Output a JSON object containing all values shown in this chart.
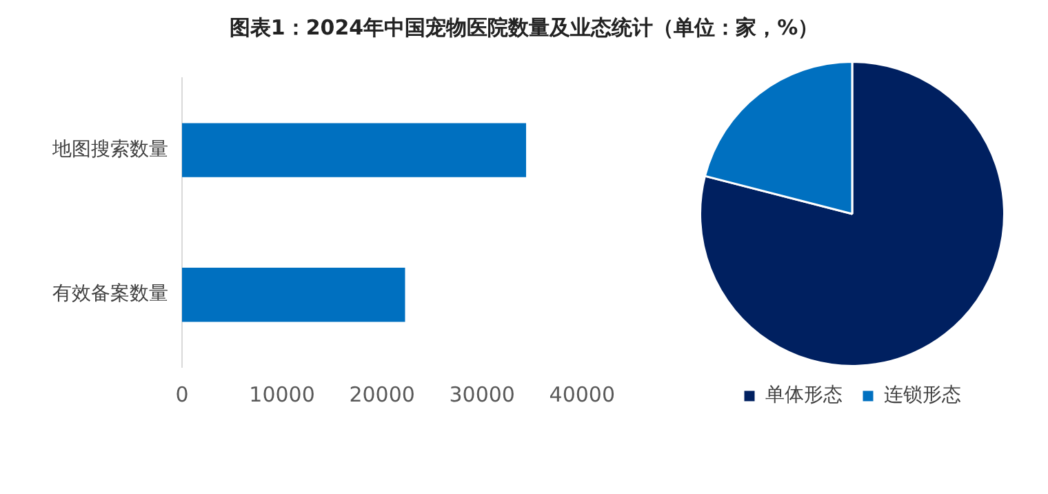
{
  "chart_data": [
    {
      "type": "bar",
      "title": "图表1：2024年中国宠物医院数量及业态统计（单位：家，%）",
      "orientation": "horizontal",
      "categories": [
        "地图搜索数量",
        "有效备案数量"
      ],
      "values": [
        34400,
        22300
      ],
      "color": "#0070c0",
      "xlim": [
        0,
        40000
      ],
      "xticks": [
        0,
        10000,
        20000,
        30000,
        40000
      ],
      "grid": false,
      "legend": false
    },
    {
      "type": "pie",
      "categories": [
        "单体形态",
        "连锁形态"
      ],
      "values": [
        79,
        21
      ],
      "colors": [
        "#002060",
        "#0070c0"
      ],
      "legend": "bottom"
    }
  ]
}
